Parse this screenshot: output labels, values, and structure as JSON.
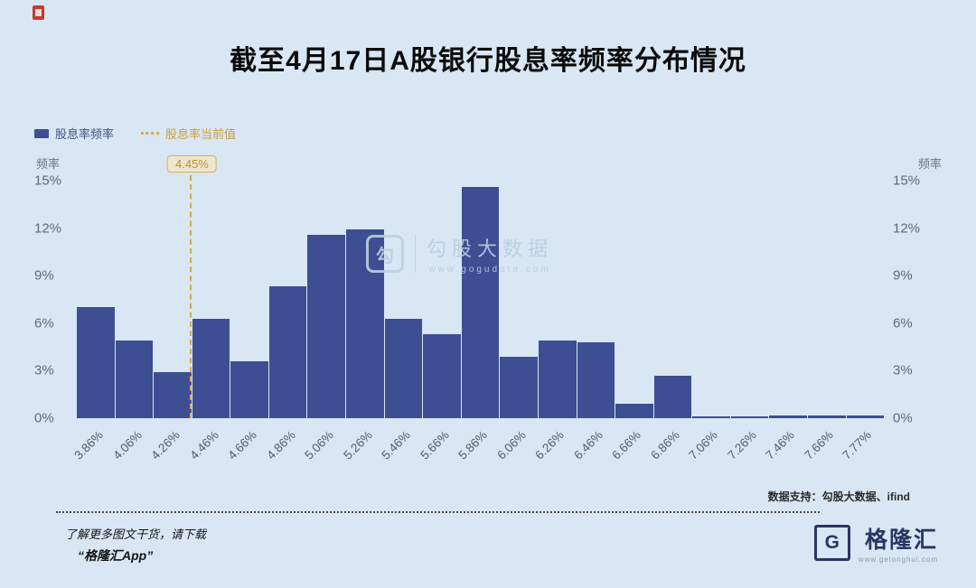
{
  "header": {
    "title": "截至4月17日A股银行股息率频率分布情况"
  },
  "legend": {
    "bar_label": "股息率频率",
    "line_label": "股息率当前值"
  },
  "axes": {
    "left_title": "频率",
    "right_title": "频率"
  },
  "chart_data": {
    "type": "bar",
    "title": "截至4月17日A股银行股息率频率分布情况",
    "series_name": "股息率频率",
    "categories": [
      "3.86%",
      "4.06%",
      "4.26%",
      "4.46%",
      "4.66%",
      "4.86%",
      "5.06%",
      "5.26%",
      "5.46%",
      "5.66%",
      "5.86%",
      "6.06%",
      "6.26%",
      "6.46%",
      "6.66%",
      "6.86%",
      "7.06%",
      "7.26%",
      "7.46%",
      "7.66%",
      "7.77%"
    ],
    "values": [
      7.0,
      4.9,
      2.9,
      6.3,
      3.6,
      8.3,
      11.6,
      11.9,
      6.3,
      5.3,
      14.6,
      3.9,
      4.9,
      4.8,
      0.9,
      2.7,
      0.1,
      0.1,
      0.2,
      0.2,
      0.2
    ],
    "ylabel": "频率",
    "ylim": [
      0,
      15
    ],
    "yticks": [
      "0%",
      "3%",
      "6%",
      "9%",
      "12%",
      "15%"
    ],
    "grid": false,
    "legend_position": "top-left",
    "bar_color": "#3e4e92",
    "current_value": {
      "label": "4.45%",
      "value": 4.45,
      "line_color": "#d9a84e"
    }
  },
  "watermark": {
    "logo_glyph": "勾",
    "brand": "勾股大数据",
    "url": "www.gogudata.com"
  },
  "footer": {
    "data_support": "数据支持：勾股大数据、ifind",
    "promo_line1": "了解更多图文干货，请下载",
    "promo_line2": "“格隆汇App”",
    "brand_logo_glyph": "G",
    "brand": "格隆汇",
    "brand_url": "www.gelonghui.com"
  },
  "colors": {
    "background": "#d8e7f3",
    "bar": "#3e4e92",
    "accent": "#d9a84e",
    "axis_text": "#5e6a7d"
  }
}
